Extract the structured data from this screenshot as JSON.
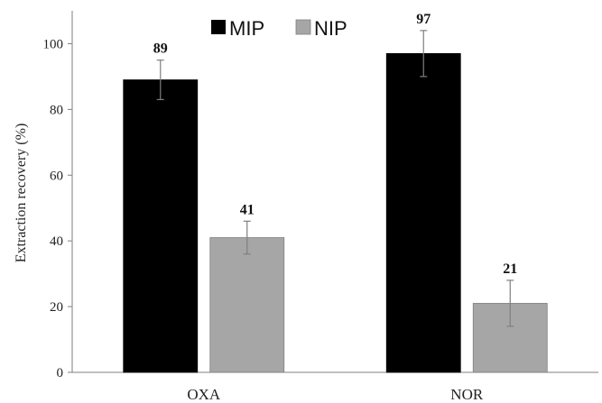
{
  "chart_data": {
    "type": "bar",
    "title": "",
    "xlabel": "",
    "ylabel": "Extraction recovery  (%)",
    "categories": [
      "OXA",
      "NOR"
    ],
    "ylim": [
      0,
      110
    ],
    "yticks": [
      0,
      20,
      40,
      60,
      80,
      100
    ],
    "grid": false,
    "legend_position": "top-center",
    "series": [
      {
        "name": "MIP",
        "values": [
          89,
          97
        ],
        "errors": [
          6,
          7
        ],
        "color": "#000000"
      },
      {
        "name": "NIP",
        "values": [
          41,
          21
        ],
        "errors": [
          5,
          7
        ],
        "color": "#a6a6a6"
      }
    ],
    "data_labels": [
      [
        "89",
        "97"
      ],
      [
        "41",
        "21"
      ]
    ]
  }
}
